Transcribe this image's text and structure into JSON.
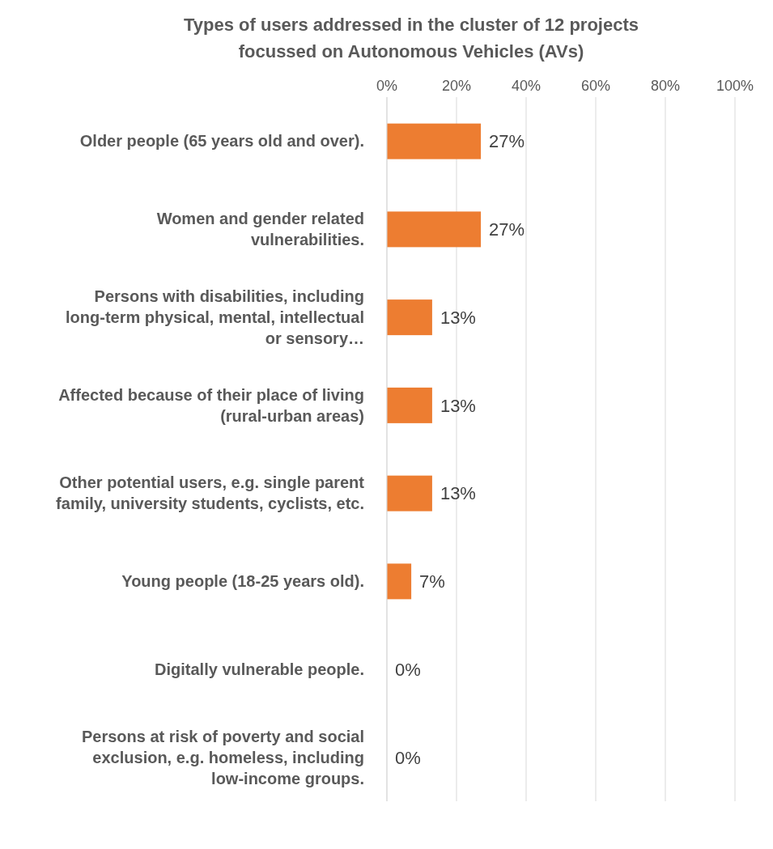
{
  "chart_data": {
    "type": "bar",
    "orientation": "horizontal",
    "title": "Types of users addressed in the cluster of 12 projects focussed on Autonomous Vehicles (AVs)",
    "categories": [
      "Older people (65 years old and over).",
      "Women and gender related vulnerabilities.",
      "Persons with disabilities, including long-term physical, mental, intellectual or sensory…",
      "Affected because of their place of living (rural-urban areas)",
      "Other potential users, e.g. single parent family, university students, cyclists, etc.",
      "Young people (18-25 years old).",
      "Digitally vulnerable people.",
      "Persons at risk of poverty and social exclusion, e.g. homeless, including low-income groups."
    ],
    "values": [
      27,
      27,
      13,
      13,
      13,
      7,
      0,
      0
    ],
    "value_labels": [
      "27%",
      "27%",
      "13%",
      "13%",
      "13%",
      "7%",
      "0%",
      "0%"
    ],
    "color": "#ed7d31",
    "xlim": [
      0,
      100
    ],
    "xticks": [
      {
        "value": 0,
        "label": "0%"
      },
      {
        "value": 20,
        "label": "20%"
      },
      {
        "value": 40,
        "label": "40%"
      },
      {
        "value": 60,
        "label": "60%"
      },
      {
        "value": 80,
        "label": "80%"
      },
      {
        "value": 100,
        "label": "100%"
      }
    ],
    "grid": "x"
  }
}
